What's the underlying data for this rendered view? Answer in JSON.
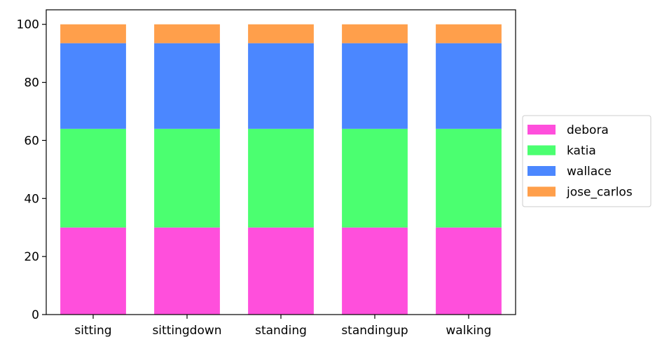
{
  "chart_data": {
    "type": "bar",
    "stacked": true,
    "categories": [
      "sitting",
      "sittingdown",
      "standing",
      "standingup",
      "walking"
    ],
    "series": [
      {
        "name": "debora",
        "color": "#ff4fdc",
        "values": [
          30,
          30,
          30,
          30,
          30
        ]
      },
      {
        "name": "katia",
        "color": "#4bff70",
        "values": [
          34,
          34,
          34,
          34,
          34
        ]
      },
      {
        "name": "wallace",
        "color": "#4b87ff",
        "values": [
          29.5,
          29.5,
          29.5,
          29.5,
          29.5
        ]
      },
      {
        "name": "jose_carlos",
        "color": "#ff9f4b",
        "values": [
          6.5,
          6.5,
          6.5,
          6.5,
          6.5
        ]
      }
    ],
    "title": "",
    "xlabel": "",
    "ylabel": "",
    "ylim": [
      0,
      105
    ],
    "yticks": [
      0,
      20,
      40,
      60,
      80,
      100
    ],
    "grid": false,
    "legend": "center-right-outside"
  }
}
